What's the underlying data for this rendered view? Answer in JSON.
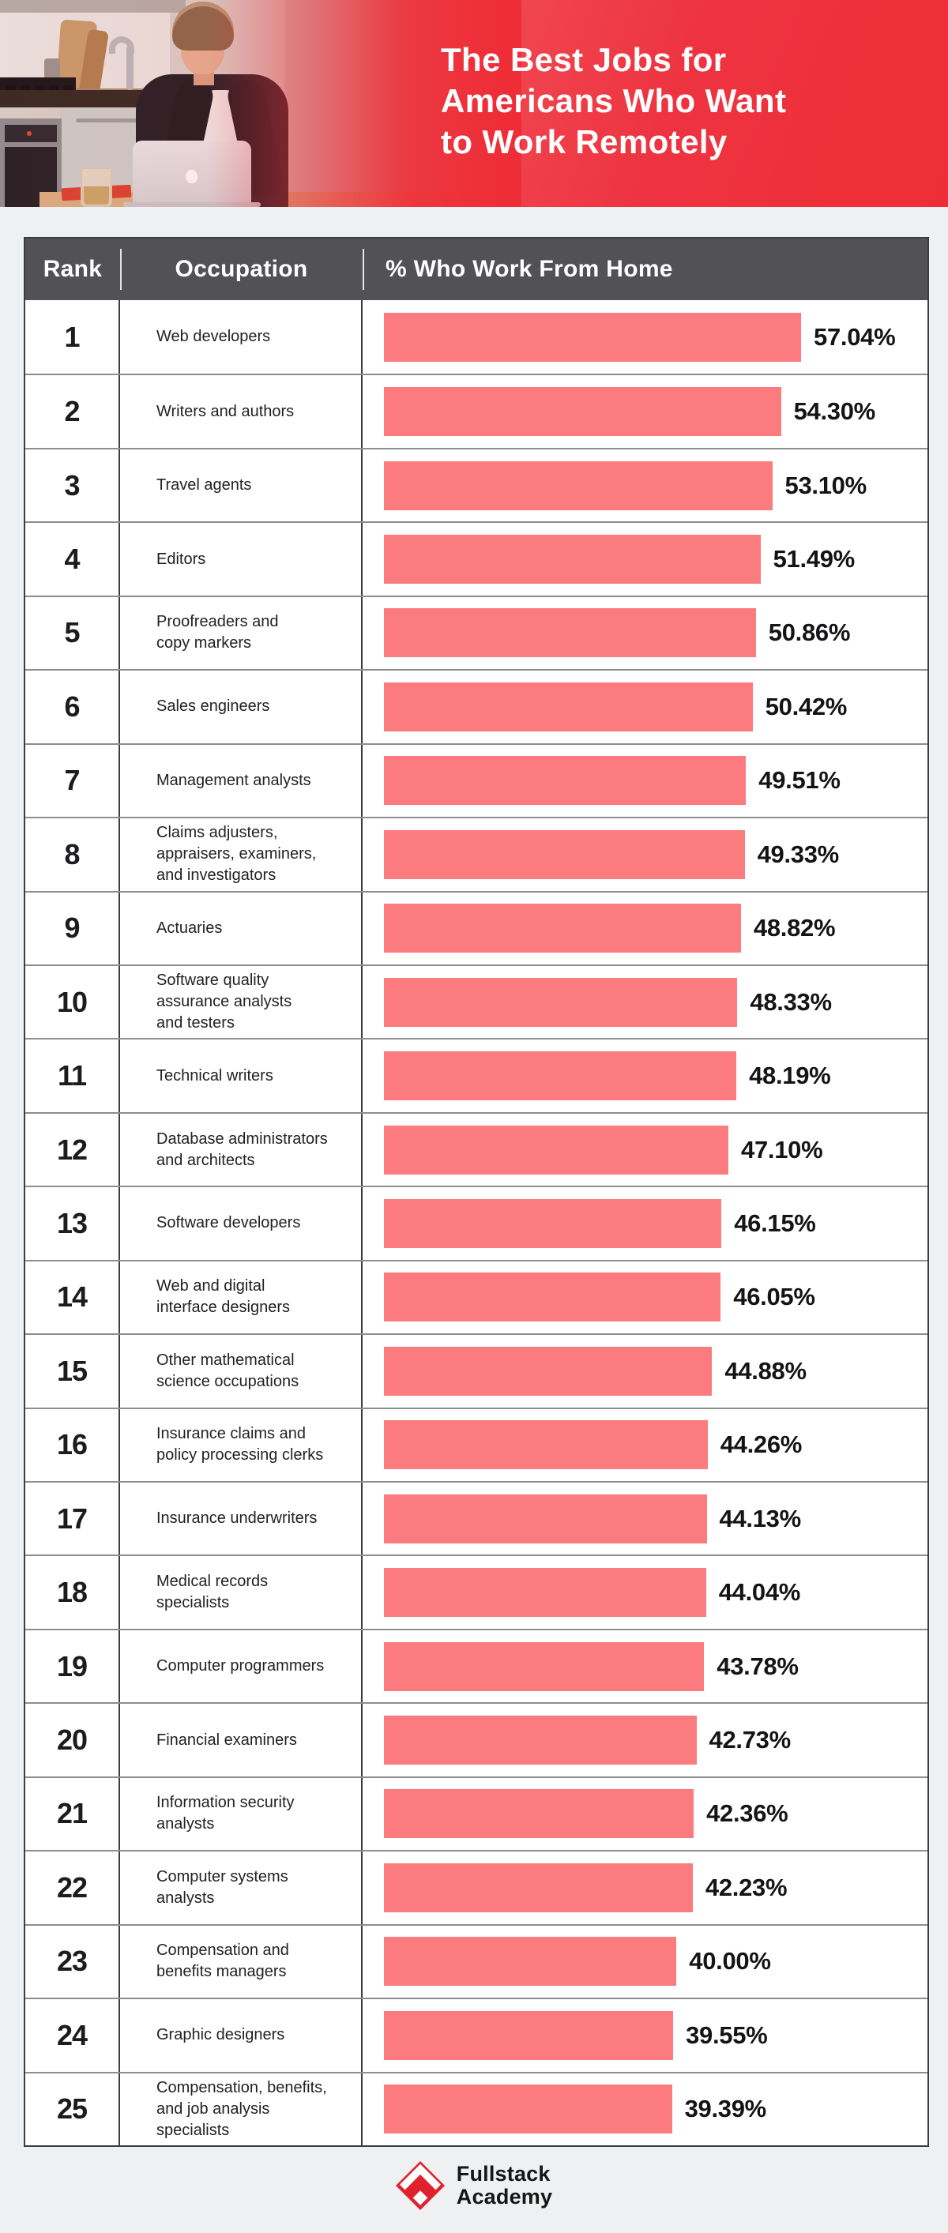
{
  "header": {
    "title_lines": [
      "The Best Jobs for",
      "Americans Who Want",
      "to Work Remotely"
    ],
    "background_color_start": "#f2565d",
    "background_color_end": "#ee2d37",
    "photo_description": "man working on laptop in kitchen"
  },
  "table": {
    "columns": [
      "Rank",
      "Occupation",
      "% Who Work From Home"
    ],
    "header_bg": "#525156",
    "bar_color": "#fb7b7e",
    "rows": [
      {
        "rank": "1",
        "occupation": "Web developers",
        "value": 57.04,
        "label": "57.04%"
      },
      {
        "rank": "2",
        "occupation": "Writers and authors",
        "value": 54.3,
        "label": "54.30%"
      },
      {
        "rank": "3",
        "occupation": "Travel agents",
        "value": 53.1,
        "label": "53.10%"
      },
      {
        "rank": "4",
        "occupation": "Editors",
        "value": 51.49,
        "label": "51.49%"
      },
      {
        "rank": "5",
        "occupation": "Proofreaders and\ncopy markers",
        "value": 50.86,
        "label": "50.86%"
      },
      {
        "rank": "6",
        "occupation": "Sales engineers",
        "value": 50.42,
        "label": "50.42%"
      },
      {
        "rank": "7",
        "occupation": "Management analysts",
        "value": 49.51,
        "label": "49.51%"
      },
      {
        "rank": "8",
        "occupation": "Claims adjusters,\nappraisers, examiners,\nand investigators",
        "value": 49.33,
        "label": "49.33%"
      },
      {
        "rank": "9",
        "occupation": "Actuaries",
        "value": 48.82,
        "label": "48.82%"
      },
      {
        "rank": "10",
        "occupation": "Software quality\nassurance analysts\nand testers",
        "value": 48.33,
        "label": "48.33%"
      },
      {
        "rank": "11",
        "occupation": "Technical writers",
        "value": 48.19,
        "label": "48.19%"
      },
      {
        "rank": "12",
        "occupation": "Database administrators\nand architects",
        "value": 47.1,
        "label": "47.10%"
      },
      {
        "rank": "13",
        "occupation": "Software developers",
        "value": 46.15,
        "label": "46.15%"
      },
      {
        "rank": "14",
        "occupation": "Web and digital\ninterface designers",
        "value": 46.05,
        "label": "46.05%"
      },
      {
        "rank": "15",
        "occupation": "Other mathematical\nscience occupations",
        "value": 44.88,
        "label": "44.88%"
      },
      {
        "rank": "16",
        "occupation": "Insurance claims and\npolicy processing clerks",
        "value": 44.26,
        "label": "44.26%"
      },
      {
        "rank": "17",
        "occupation": "Insurance underwriters",
        "value": 44.13,
        "label": "44.13%"
      },
      {
        "rank": "18",
        "occupation": "Medical records\nspecialists",
        "value": 44.04,
        "label": "44.04%"
      },
      {
        "rank": "19",
        "occupation": "Computer programmers",
        "value": 43.78,
        "label": "43.78%"
      },
      {
        "rank": "20",
        "occupation": "Financial examiners",
        "value": 42.73,
        "label": "42.73%"
      },
      {
        "rank": "21",
        "occupation": "Information security\nanalysts",
        "value": 42.36,
        "label": "42.36%"
      },
      {
        "rank": "22",
        "occupation": "Computer systems\nanalysts",
        "value": 42.23,
        "label": "42.23%"
      },
      {
        "rank": "23",
        "occupation": "Compensation and\nbenefits managers",
        "value": 40.0,
        "label": "40.00%"
      },
      {
        "rank": "24",
        "occupation": "Graphic designers",
        "value": 39.55,
        "label": "39.55%"
      },
      {
        "rank": "25",
        "occupation": "Compensation, benefits,\nand job analysis\nspecialists",
        "value": 39.39,
        "label": "39.39%"
      }
    ]
  },
  "footer": {
    "brand_line1": "Fullstack",
    "brand_line2": "Academy",
    "logo_color": "#e0222f"
  },
  "chart_data": {
    "type": "bar",
    "orientation": "horizontal",
    "title": "The Best Jobs for Americans Who Want to Work Remotely",
    "xlabel": "% Who Work From Home",
    "xlim": [
      0,
      60
    ],
    "value_format": "percent",
    "legend": false,
    "grid": false,
    "categories": [
      "Web developers",
      "Writers and authors",
      "Travel agents",
      "Editors",
      "Proofreaders and copy markers",
      "Sales engineers",
      "Management analysts",
      "Claims adjusters, appraisers, examiners, and investigators",
      "Actuaries",
      "Software quality assurance analysts and testers",
      "Technical writers",
      "Database administrators and architects",
      "Software developers",
      "Web and digital interface designers",
      "Other mathematical science occupations",
      "Insurance claims and policy processing clerks",
      "Insurance underwriters",
      "Medical records specialists",
      "Computer programmers",
      "Financial examiners",
      "Information security analysts",
      "Computer systems analysts",
      "Compensation and benefits managers",
      "Graphic designers",
      "Compensation, benefits, and job analysis specialists"
    ],
    "values": [
      57.04,
      54.3,
      53.1,
      51.49,
      50.86,
      50.42,
      49.51,
      49.33,
      48.82,
      48.33,
      48.19,
      47.1,
      46.15,
      46.05,
      44.88,
      44.26,
      44.13,
      44.04,
      43.78,
      42.73,
      42.36,
      42.23,
      40.0,
      39.55,
      39.39
    ]
  }
}
